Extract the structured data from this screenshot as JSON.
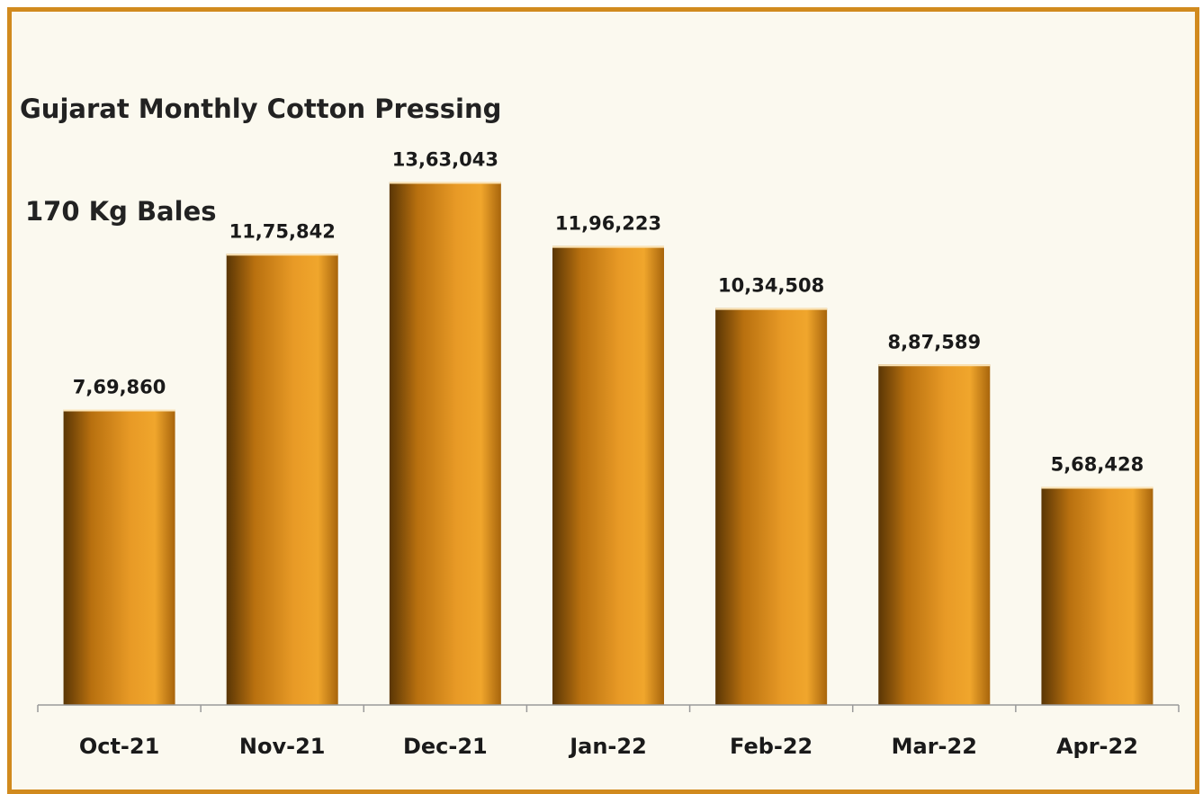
{
  "chart_data": {
    "type": "bar",
    "title": "Gujarat Monthly Cotton Pressing",
    "subtitle": "170 Kg Bales",
    "categories": [
      "Oct-21",
      "Nov-21",
      "Dec-21",
      "Jan-22",
      "Feb-22",
      "Mar-22",
      "Apr-22"
    ],
    "values": [
      769860,
      1175842,
      1363043,
      1196223,
      1034508,
      887589,
      568428
    ],
    "data_labels": [
      "7,69,860",
      "11,75,842",
      "13,63,043",
      "11,96,223",
      "10,34,508",
      "8,87,589",
      "5,68,428"
    ],
    "xlabel": "",
    "ylabel": "",
    "ylim": [
      0,
      1650000
    ],
    "grid": false,
    "legend": "none",
    "bar_colors": [
      "#5a3605",
      "#b8700f",
      "#e89a26",
      "#f0a62c",
      "#a8650c"
    ],
    "background": "#fbf9ef",
    "border_color": "#d18a1e"
  }
}
